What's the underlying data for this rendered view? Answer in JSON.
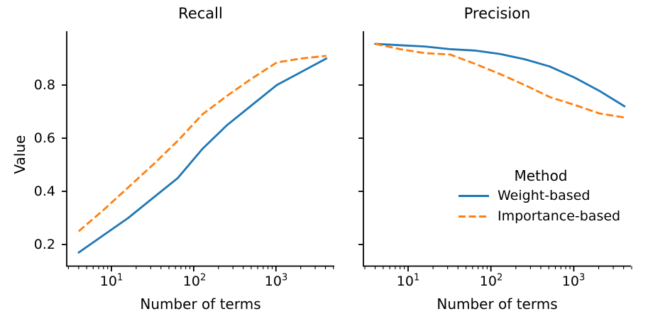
{
  "figure": {
    "panels": [
      {
        "title": "Recall"
      },
      {
        "title": "Precision"
      }
    ],
    "ylabel": "Value",
    "xlabel": "Number of terms",
    "y_ticks": [
      "0.8",
      "0.6",
      "0.4",
      "0.2"
    ],
    "x_ticks": [
      {
        "base": "10",
        "exp": "1"
      },
      {
        "base": "10",
        "exp": "2"
      },
      {
        "base": "10",
        "exp": "3"
      }
    ],
    "legend": {
      "title": "Method",
      "items": [
        {
          "label": "Weight-based",
          "color": "#1f77b4",
          "style": "solid"
        },
        {
          "label": "Importance-based",
          "color": "#ff7f0e",
          "style": "dashed"
        }
      ]
    },
    "colors": {
      "axis": "#000000",
      "background": "#ffffff"
    }
  },
  "chart_data": [
    {
      "type": "line",
      "title": "Recall",
      "xlabel": "Number of terms",
      "ylabel": "Value",
      "x_scale": "log",
      "x": [
        4,
        8,
        16,
        32,
        64,
        128,
        256,
        512,
        1024,
        2048,
        4096
      ],
      "series": [
        {
          "name": "Weight-based",
          "color": "#1f77b4",
          "line_style": "solid",
          "values": [
            0.17,
            0.235,
            0.3,
            0.375,
            0.45,
            0.56,
            0.65,
            0.725,
            0.8,
            0.85,
            0.9
          ]
        },
        {
          "name": "Importance-based",
          "color": "#ff7f0e",
          "line_style": "dashed",
          "values": [
            0.25,
            0.33,
            0.415,
            0.5,
            0.59,
            0.69,
            0.76,
            0.825,
            0.885,
            0.9,
            0.91
          ]
        }
      ],
      "xlim": [
        2.9,
        5600
      ],
      "ylim": [
        0.12,
        1.0
      ],
      "grid": false,
      "legend_position": "none"
    },
    {
      "type": "line",
      "title": "Precision",
      "xlabel": "Number of terms",
      "ylabel": "Value",
      "x_scale": "log",
      "x": [
        4,
        8,
        16,
        32,
        64,
        128,
        256,
        512,
        1024,
        2048,
        4096
      ],
      "series": [
        {
          "name": "Weight-based",
          "color": "#1f77b4",
          "line_style": "solid",
          "values": [
            0.955,
            0.95,
            0.945,
            0.935,
            0.93,
            0.917,
            0.897,
            0.87,
            0.828,
            0.778,
            0.72
          ]
        },
        {
          "name": "Importance-based",
          "color": "#ff7f0e",
          "line_style": "dashed",
          "values": [
            0.955,
            0.935,
            0.92,
            0.915,
            0.88,
            0.842,
            0.8,
            0.755,
            0.725,
            0.693,
            0.678
          ]
        }
      ],
      "xlim": [
        2.9,
        5600
      ],
      "ylim": [
        0.12,
        1.0
      ],
      "grid": false,
      "legend_position": "center-right inside panel"
    }
  ]
}
